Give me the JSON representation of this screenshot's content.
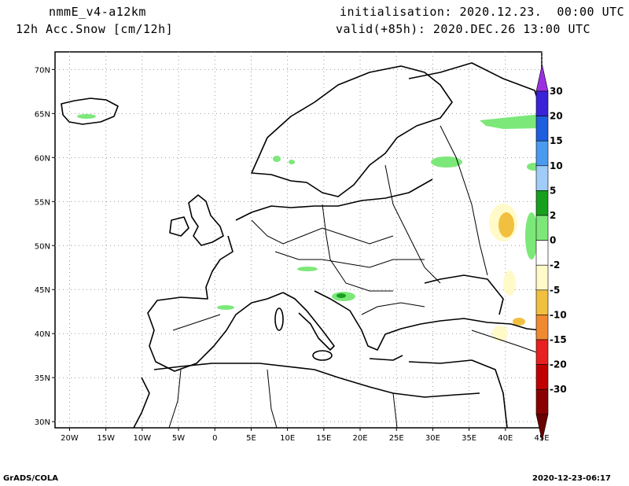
{
  "header": {
    "model": "nmmE_v4-a12km",
    "field": "12h Acc.Snow [cm/12h]",
    "init": "initialisation: 2020.12.23.  00:00 UTC",
    "valid": "valid(+85h): 2020.DEC.26 13:00 UTC"
  },
  "axes": {
    "lat_labels": [
      "30N",
      "35N",
      "40N",
      "45N",
      "50N",
      "55N",
      "60N",
      "65N",
      "70N"
    ],
    "lon_labels": [
      "20W",
      "15W",
      "10W",
      "5W",
      "0",
      "5E",
      "10E",
      "15E",
      "20E",
      "25E",
      "30E",
      "35E",
      "40E",
      "45E"
    ],
    "lat_values": [
      30,
      35,
      40,
      45,
      50,
      55,
      60,
      65,
      70
    ],
    "lon_values": [
      -20,
      -15,
      -10,
      -5,
      0,
      5,
      10,
      15,
      20,
      25,
      30,
      35,
      40,
      45
    ],
    "lon_range": [
      -22,
      45
    ],
    "lat_range": [
      29.3,
      72
    ]
  },
  "colorbar": {
    "labels": [
      "30",
      "20",
      "15",
      "10",
      "5",
      "2",
      "0",
      "-2",
      "-5",
      "-10",
      "-15",
      "-20",
      "-30"
    ],
    "colors": [
      "#3a22d9",
      "#1e5fe0",
      "#4a9af0",
      "#a0ccf8",
      "#17a01d",
      "#7de87a",
      "#ffffff",
      "#fffac8",
      "#f2c040",
      "#ef8a30",
      "#e82020",
      "#c00000",
      "#8a0000"
    ],
    "top_arrow_color": "#9b30e0",
    "bottom_arrow_color": "#6a0000"
  },
  "footer": {
    "left": "GrADS/COLA",
    "right": "2020-12-23-06:17"
  }
}
